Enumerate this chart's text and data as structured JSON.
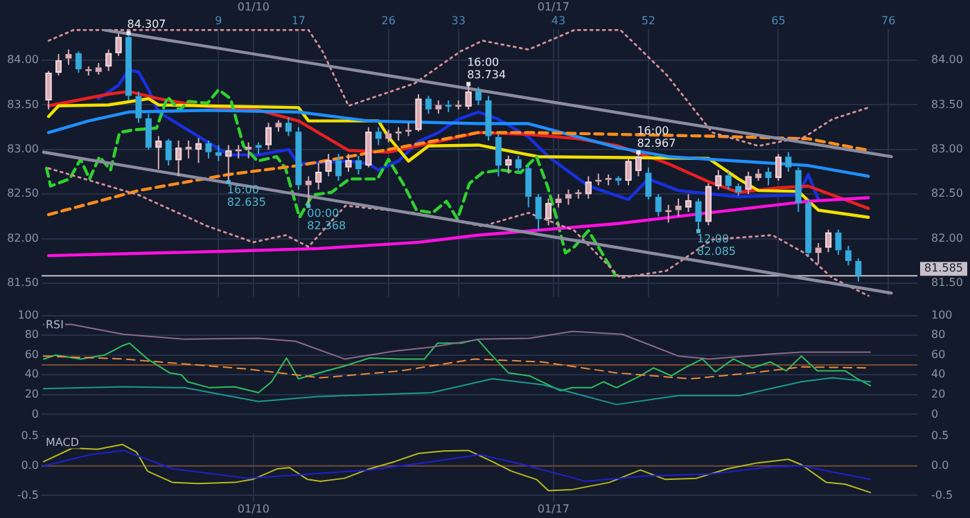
{
  "chart_data": [
    {
      "type": "candlestick",
      "x": [
        -8,
        -7,
        -6,
        -5,
        -4,
        -3,
        -2,
        -1,
        0,
        1,
        2,
        3,
        4,
        5,
        6,
        7,
        8,
        9,
        10,
        11,
        12,
        13,
        14,
        15,
        16,
        17,
        18,
        19,
        20,
        21,
        22,
        23,
        24,
        25,
        26,
        27,
        28,
        29,
        30,
        31,
        32,
        33,
        34,
        35,
        36,
        37,
        38,
        39,
        40,
        41,
        42,
        43,
        44,
        45,
        46,
        47,
        48,
        49,
        50,
        51,
        52,
        53,
        54,
        55,
        56,
        57,
        58,
        59,
        60,
        61,
        62,
        63,
        64,
        65,
        66,
        67,
        68,
        69,
        70,
        71,
        72,
        73
      ],
      "ohlc": [
        [
          83.55,
          83.88,
          83.45,
          83.86
        ],
        [
          83.86,
          84.07,
          83.83,
          84.0
        ],
        [
          84.02,
          84.12,
          83.95,
          84.07
        ],
        [
          84.08,
          84.1,
          83.86,
          83.9
        ],
        [
          83.88,
          83.93,
          83.83,
          83.9
        ],
        [
          83.87,
          83.97,
          83.84,
          83.92
        ],
        [
          83.93,
          84.12,
          83.88,
          84.08
        ],
        [
          84.08,
          84.3,
          84.05,
          84.26
        ],
        [
          84.26,
          84.307,
          83.55,
          83.6
        ],
        [
          83.6,
          83.65,
          83.3,
          83.35
        ],
        [
          83.35,
          83.4,
          83.0,
          83.02
        ],
        [
          83.02,
          83.15,
          82.78,
          83.1
        ],
        [
          83.1,
          83.12,
          82.82,
          82.88
        ],
        [
          82.88,
          83.1,
          82.7,
          83.02
        ],
        [
          83.0,
          83.1,
          82.9,
          83.03
        ],
        [
          83.0,
          83.13,
          82.85,
          83.07
        ],
        [
          83.07,
          83.1,
          82.9,
          82.97
        ],
        [
          82.97,
          83.05,
          82.87,
          82.93
        ],
        [
          82.92,
          83.05,
          82.635,
          82.99
        ],
        [
          82.98,
          83.05,
          82.9,
          83.0
        ],
        [
          83.0,
          83.08,
          82.9,
          83.03
        ],
        [
          83.05,
          83.08,
          82.95,
          83.02
        ],
        [
          83.05,
          83.3,
          83.0,
          83.25
        ],
        [
          83.25,
          83.33,
          83.2,
          83.3
        ],
        [
          83.3,
          83.36,
          83.15,
          83.2
        ],
        [
          83.2,
          83.25,
          82.55,
          82.6
        ],
        [
          82.6,
          82.7,
          82.368,
          82.65
        ],
        [
          82.63,
          82.85,
          82.55,
          82.75
        ],
        [
          82.75,
          82.95,
          82.7,
          82.88
        ],
        [
          82.88,
          82.95,
          82.65,
          82.7
        ],
        [
          82.8,
          82.95,
          82.75,
          82.88
        ],
        [
          82.88,
          82.93,
          82.72,
          82.78
        ],
        [
          82.82,
          83.25,
          82.8,
          83.2
        ],
        [
          83.2,
          83.25,
          83.05,
          83.12
        ],
        [
          83.12,
          83.22,
          83.08,
          83.18
        ],
        [
          83.18,
          83.25,
          83.1,
          83.2
        ],
        [
          83.2,
          83.3,
          83.15,
          83.22
        ],
        [
          83.22,
          83.62,
          83.2,
          83.57
        ],
        [
          83.57,
          83.6,
          83.4,
          83.45
        ],
        [
          83.45,
          83.55,
          83.4,
          83.5
        ],
        [
          83.5,
          83.55,
          83.42,
          83.48
        ],
        [
          83.48,
          83.55,
          83.45,
          83.5
        ],
        [
          83.48,
          83.734,
          83.45,
          83.65
        ],
        [
          83.65,
          83.7,
          83.5,
          83.55
        ],
        [
          83.55,
          83.6,
          83.1,
          83.15
        ],
        [
          83.14,
          83.17,
          82.7,
          82.82
        ],
        [
          82.82,
          82.93,
          82.73,
          82.89
        ],
        [
          82.89,
          82.93,
          82.75,
          82.79
        ],
        [
          82.79,
          82.82,
          82.35,
          82.47
        ],
        [
          82.47,
          82.5,
          82.09,
          82.22
        ],
        [
          82.22,
          82.45,
          82.15,
          82.4
        ],
        [
          82.4,
          82.5,
          82.35,
          82.45
        ],
        [
          82.45,
          82.55,
          82.38,
          82.5
        ],
        [
          82.5,
          82.55,
          82.45,
          82.52
        ],
        [
          82.5,
          82.7,
          82.45,
          82.64
        ],
        [
          82.64,
          82.73,
          82.6,
          82.66
        ],
        [
          82.66,
          82.72,
          82.6,
          82.68
        ],
        [
          82.68,
          82.7,
          82.6,
          82.65
        ],
        [
          82.65,
          82.9,
          82.6,
          82.87
        ],
        [
          82.76,
          82.967,
          82.7,
          82.92
        ],
        [
          82.74,
          82.8,
          82.44,
          82.47
        ],
        [
          82.47,
          82.5,
          82.25,
          82.3
        ],
        [
          82.3,
          82.38,
          82.18,
          82.32
        ],
        [
          82.32,
          82.45,
          82.25,
          82.37
        ],
        [
          82.35,
          82.5,
          82.3,
          82.43
        ],
        [
          82.42,
          82.45,
          82.085,
          82.19
        ],
        [
          82.19,
          82.62,
          82.15,
          82.59
        ],
        [
          82.59,
          82.77,
          82.55,
          82.71
        ],
        [
          82.71,
          82.75,
          82.55,
          82.59
        ],
        [
          82.59,
          82.62,
          82.48,
          82.52
        ],
        [
          82.55,
          82.75,
          82.5,
          82.7
        ],
        [
          82.68,
          82.78,
          82.65,
          82.73
        ],
        [
          82.75,
          82.8,
          82.6,
          82.68
        ],
        [
          82.68,
          82.95,
          82.65,
          82.92
        ],
        [
          82.92,
          82.97,
          82.75,
          82.8
        ],
        [
          82.77,
          82.8,
          82.3,
          82.4
        ],
        [
          82.4,
          82.45,
          81.8,
          81.84
        ],
        [
          81.84,
          81.95,
          81.72,
          81.9
        ],
        [
          81.9,
          82.1,
          81.85,
          82.07
        ],
        [
          82.07,
          82.1,
          81.82,
          81.87
        ],
        [
          81.87,
          81.92,
          81.7,
          81.75
        ],
        [
          81.75,
          81.78,
          81.52,
          81.585
        ]
      ],
      "colors": [
        "#d8aab4",
        "#d8aab4",
        "#d8aab4",
        "#35a8dc",
        "#d8aab4",
        "#d8aab4",
        "#d8aab4",
        "#d8aab4",
        "#35a8dc",
        "#35a8dc",
        "#35a8dc",
        "#d8aab4",
        "#35a8dc",
        "#d8aab4",
        "#d8aab4",
        "#d8aab4",
        "#35a8dc",
        "#35a8dc",
        "#d8aab4",
        "#d8aab4",
        "#d8aab4",
        "#35a8dc",
        "#d8aab4",
        "#d8aab4",
        "#35a8dc",
        "#35a8dc",
        "#d8aab4",
        "#d8aab4",
        "#d8aab4",
        "#35a8dc",
        "#d8aab4",
        "#35a8dc",
        "#d8aab4",
        "#35a8dc",
        "#d8aab4",
        "#d8aab4",
        "#d8aab4",
        "#d8aab4",
        "#35a8dc",
        "#d8aab4",
        "#35a8dc",
        "#d8aab4",
        "#d8aab4",
        "#35a8dc",
        "#35a8dc",
        "#35a8dc",
        "#d8aab4",
        "#35a8dc",
        "#35a8dc",
        "#35a8dc",
        "#d8aab4",
        "#d8aab4",
        "#d8aab4",
        "#d8aab4",
        "#d8aab4",
        "#d8aab4",
        "#d8aab4",
        "#35a8dc",
        "#d8aab4",
        "#d8aab4",
        "#35a8dc",
        "#35a8dc",
        "#d8aab4",
        "#d8aab4",
        "#d8aab4",
        "#35a8dc",
        "#d8aab4",
        "#d8aab4",
        "#35a8dc",
        "#35a8dc",
        "#d8aab4",
        "#d8aab4",
        "#35a8dc",
        "#d8aab4",
        "#35a8dc",
        "#35a8dc",
        "#35a8dc",
        "#d8aab4",
        "#d8aab4",
        "#35a8dc",
        "#35a8dc",
        "#35a8dc"
      ],
      "series": [
        {
          "type": "line",
          "color": "#8c8ca0",
          "x": [
            -2.4,
            76.3
          ],
          "values": [
            84.34,
            82.92
          ]
        },
        {
          "type": "line",
          "color": "#8c8ca0",
          "x": [
            -8.5,
            76.3
          ],
          "values": [
            82.97,
            81.39
          ]
        },
        {
          "type": "line",
          "color": "#d89098",
          "line_style": "dotted",
          "x": [
            -8,
            -5.5,
            18,
            19.4,
            22,
            28.6,
            33.2,
            35.4,
            40,
            44.6,
            49.2,
            53.8,
            58.4,
            63,
            67.6,
            70.4,
            74
          ],
          "values": [
            84.22,
            84.34,
            84.34,
            84.1,
            83.49,
            83.74,
            84.1,
            84.22,
            84.12,
            84.34,
            84.34,
            83.84,
            83.19,
            83.04,
            83.14,
            83.34,
            83.47
          ]
        },
        {
          "type": "line",
          "color": "#d89098",
          "line_style": "dotted",
          "x": [
            -8,
            1,
            7.9,
            12.5,
            15.7,
            18,
            21.7,
            28.6,
            35.4,
            40,
            44.6,
            49.2,
            53.8,
            58.4,
            64.4,
            67.6,
            70.4,
            74
          ],
          "values": [
            82.79,
            82.49,
            82.14,
            81.96,
            82.04,
            81.91,
            82.37,
            82.29,
            82.14,
            82.29,
            82.09,
            81.56,
            81.64,
            81.99,
            82.04,
            81.84,
            81.56,
            81.36
          ]
        },
        {
          "type": "line",
          "color": "#ff10e0",
          "x": [
            -8,
            10,
            19,
            29,
            35,
            49,
            58,
            68,
            74
          ],
          "values": [
            81.81,
            81.86,
            81.89,
            81.96,
            82.04,
            82.17,
            82.29,
            82.42,
            82.46
          ]
        },
        {
          "type": "line",
          "color": "#ff8c1a",
          "line_style": "dashed",
          "x": [
            -8,
            1,
            10,
            17,
            26,
            35,
            40,
            49,
            58,
            68,
            74
          ],
          "values": [
            82.27,
            82.54,
            82.72,
            82.82,
            83.0,
            83.19,
            83.19,
            83.17,
            83.15,
            83.12,
            82.99
          ]
        },
        {
          "type": "line",
          "color": "#1e90ff",
          "x": [
            -8,
            -4,
            0,
            8,
            17,
            24,
            35,
            40,
            49,
            54,
            68,
            74
          ],
          "values": [
            83.19,
            83.32,
            83.42,
            83.44,
            83.42,
            83.32,
            83.29,
            83.29,
            83.02,
            82.92,
            82.82,
            82.7
          ]
        },
        {
          "type": "line",
          "color": "#30d030",
          "line_style": "dashed",
          "x": [
            -8.2,
            -7.8,
            -5.9,
            -4.8,
            -3.9,
            -2.9,
            -1.8,
            -0.9,
            0.5,
            2.8,
            3.9,
            5.1,
            6,
            7.9,
            9,
            10.2,
            11.5,
            12.9,
            14.8,
            15.7,
            17.1,
            18.4,
            20.3,
            22.1,
            24.9,
            26,
            27.6,
            28.8,
            30.4,
            31.8,
            32.9,
            34.1,
            35.4,
            37.3,
            39.2,
            40.8,
            41.9,
            42.8,
            43.7,
            44.6,
            46,
            48.7
          ],
          "values": [
            82.79,
            82.59,
            82.67,
            82.89,
            82.67,
            82.92,
            82.77,
            83.19,
            83.22,
            83.24,
            83.59,
            83.44,
            83.54,
            83.52,
            83.67,
            83.57,
            83.04,
            82.87,
            82.92,
            82.79,
            82.24,
            82.49,
            82.52,
            82.67,
            82.67,
            82.89,
            82.59,
            82.32,
            82.29,
            82.42,
            82.22,
            82.62,
            82.74,
            82.77,
            82.74,
            82.92,
            82.59,
            82.24,
            81.84,
            81.91,
            82.09,
            81.59
          ]
        },
        {
          "type": "line",
          "color": "#f0e000",
          "x": [
            -8,
            -7,
            -2,
            2,
            3,
            17,
            18,
            25,
            26,
            28,
            30,
            35,
            41,
            58,
            61,
            63,
            67,
            69,
            74
          ],
          "values": [
            83.37,
            83.49,
            83.5,
            83.57,
            83.5,
            83.47,
            83.32,
            83.32,
            83.14,
            82.87,
            83.04,
            83.05,
            82.92,
            82.9,
            82.67,
            82.54,
            82.53,
            82.32,
            82.24
          ]
        },
        {
          "type": "line",
          "color": "#e82020",
          "x": [
            -8,
            -2,
            0,
            3,
            7,
            13,
            17,
            22,
            26,
            31,
            35,
            40,
            45,
            49,
            54,
            58,
            61,
            65,
            68,
            74
          ],
          "values": [
            83.49,
            83.62,
            83.65,
            83.57,
            83.49,
            83.44,
            83.32,
            82.99,
            82.97,
            83.09,
            83.19,
            83.17,
            83.12,
            83.04,
            82.84,
            82.64,
            82.52,
            82.57,
            82.59,
            82.34
          ]
        },
        {
          "type": "line",
          "color": "#1830e0",
          "x": [
            -3,
            -1,
            0,
            1,
            2,
            3,
            10,
            13,
            16,
            17,
            22,
            24,
            25,
            27,
            29,
            31,
            33,
            35,
            37,
            40,
            42,
            46,
            50,
            52,
            55,
            61,
            67,
            68,
            69
          ],
          "values": [
            83.57,
            83.72,
            83.89,
            83.87,
            83.67,
            83.42,
            82.94,
            82.94,
            83.0,
            82.84,
            82.87,
            82.84,
            82.77,
            82.87,
            83.09,
            83.19,
            83.34,
            83.42,
            83.34,
            83.14,
            82.92,
            82.59,
            82.44,
            82.67,
            82.54,
            82.47,
            82.49,
            82.72,
            82.44
          ]
        }
      ],
      "xlim": [
        -8.7,
        78.9
      ],
      "xticks": [
        9,
        17,
        26,
        33,
        43,
        52,
        65,
        76
      ],
      "x2lim": [
        "--01-05T01:16",
        "--01-25T11:50"
      ],
      "x2ticks": [
        {
          "value": "--01-10",
          "label": "01/10"
        },
        {
          "value": "--01-17",
          "label": "01/17"
        }
      ],
      "ylim": [
        81.35,
        84.35
      ],
      "yticks": [
        {
          "value": 81.5,
          "label": "81.50"
        },
        {
          "value": 82,
          "label": "82.00"
        },
        {
          "value": 82.5,
          "label": "82.50"
        },
        {
          "value": 83,
          "label": "83.00"
        },
        {
          "value": 83.5,
          "label": "83.50"
        },
        {
          "value": 84,
          "label": "84.00"
        }
      ],
      "y2lim": [
        81.35,
        84.35
      ],
      "y2ticks": [
        {
          "value": 81.5,
          "label": "81.50"
        },
        {
          "value": 82,
          "label": "82.00"
        },
        {
          "value": 82.5,
          "label": "82.50"
        },
        {
          "value": 83,
          "label": "83.00"
        },
        {
          "value": 83.5,
          "label": "83.50"
        },
        {
          "value": 84,
          "label": "84.00"
        }
      ],
      "ref_lines": [
        {
          "axis": "y",
          "value": 81.585,
          "label": "81.585",
          "color": "#c8c0c8"
        }
      ],
      "annotations": [
        {
          "text": "84.307",
          "x": 0,
          "y": 84.307
        },
        {
          "text": "16:00 82.635",
          "x": 10,
          "y": 82.635
        },
        {
          "text": "00:00 82.368",
          "x": 18,
          "y": 82.368
        },
        {
          "text": "16:00 83.734",
          "x": 34,
          "y": 83.734
        },
        {
          "text": "16:00 82.967",
          "x": 51,
          "y": 82.967
        },
        {
          "text": "12:00 82.085",
          "x": 57,
          "y": 82.085
        }
      ],
      "grid": true
    },
    {
      "type": "line",
      "title": "RSI",
      "series": [
        {
          "color": "#8a6a8a",
          "x": [
            -8.5,
            -5.7,
            -0.5,
            5.6,
            13,
            16.7,
            21.6,
            26.6,
            30.3,
            35.1,
            40.1,
            44.4,
            49.4,
            55,
            58.1,
            64.2,
            67.3,
            74.2
          ],
          "values": [
            91,
            91,
            81,
            76,
            77,
            74,
            56,
            64,
            68,
            76,
            77,
            84,
            81,
            59,
            56,
            61,
            63,
            63
          ]
        },
        {
          "color": "#1a9a8a",
          "x": [
            -8.5,
            -0.5,
            5.6,
            13,
            18.8,
            30.3,
            36.4,
            41.4,
            48.8,
            55,
            61.1,
            67.3,
            70.4,
            74.2
          ],
          "values": [
            26,
            28,
            27,
            13,
            18,
            22,
            36,
            30,
            10,
            19,
            19,
            33,
            37,
            33
          ]
        },
        {
          "color": "#e88a3a",
          "line_style": "dashed",
          "x": [
            -8.5,
            -0.5,
            5.6,
            11.8,
            19.2,
            27.2,
            34.6,
            41.4,
            48.8,
            56.2,
            62.4,
            67.3,
            74.2
          ],
          "values": [
            59,
            56,
            51,
            46,
            37,
            44,
            56,
            53,
            42,
            36,
            42,
            48,
            47
          ]
        },
        {
          "color": "#2fbf5f",
          "x": [
            -8.5,
            -7.3,
            -4.8,
            -2.4,
            -0.5,
            0.1,
            1.9,
            4.1,
            5.3,
            5.9,
            8.1,
            10.6,
            13,
            14.3,
            15.8,
            17,
            19.8,
            21.6,
            24.1,
            27.2,
            29.6,
            30.9,
            33.3,
            34.9,
            36.4,
            38,
            40.1,
            43.2,
            44.4,
            46.3,
            47.5,
            48.8,
            51.2,
            52.5,
            54.3,
            55.6,
            57.4,
            58.7,
            60.5,
            62.4,
            64.2,
            65.8,
            67.3,
            68.9,
            71.7,
            72.9,
            74.2
          ],
          "values": [
            56,
            60,
            56,
            60,
            70,
            72,
            56,
            42,
            40,
            33,
            27,
            28,
            22,
            33,
            57,
            36,
            44,
            49,
            57,
            56,
            56,
            72,
            72,
            76,
            59,
            42,
            39,
            24,
            27,
            27,
            33,
            27,
            39,
            47,
            39,
            47,
            56,
            43,
            56,
            47,
            53,
            44,
            59,
            44,
            44,
            36,
            29
          ]
        }
      ],
      "xlim": [
        -8.7,
        78.9
      ],
      "tick_labels": "y",
      "ylim": [
        0,
        100
      ],
      "yticks": [
        0,
        20,
        40,
        60,
        80,
        100
      ],
      "y2lim": [
        0,
        100
      ],
      "y2ticks": [
        0,
        20,
        40,
        60,
        80,
        100
      ],
      "ref_lines": [
        {
          "axis": "y",
          "value": 50,
          "color": "#7a4a30"
        }
      ],
      "grid": true
    },
    {
      "type": "line",
      "title": "MACD",
      "series": [
        {
          "color": "#2020d0",
          "x": [
            -8.5,
            -3.8,
            -0.5,
            4.4,
            11.8,
            17.9,
            24.1,
            30.3,
            35.1,
            39.5,
            45.7,
            51.8,
            58,
            64.2,
            67.3,
            74.2
          ],
          "values": [
            0,
            0.19,
            0.26,
            -0.05,
            -0.21,
            -0.14,
            -0.07,
            0.07,
            0.19,
            0.02,
            -0.26,
            -0.17,
            -0.14,
            -0.02,
            0,
            -0.23
          ]
        },
        {
          "color": "#b8b820",
          "x": [
            -8.5,
            -5.6,
            -3.1,
            -0.6,
            0.8,
            1.9,
            4.4,
            6.9,
            10.6,
            12.4,
            14.9,
            16.1,
            17.9,
            19.2,
            21.6,
            24.1,
            26.6,
            29,
            31.5,
            34,
            36.4,
            38.3,
            40.8,
            42,
            44.4,
            48.1,
            51.2,
            53.7,
            56.8,
            59.9,
            62.9,
            66,
            67.3,
            69.8,
            71.7,
            74.2
          ],
          "values": [
            0.07,
            0.3,
            0.28,
            0.36,
            0.23,
            -0.09,
            -0.28,
            -0.3,
            -0.28,
            -0.23,
            -0.05,
            -0.03,
            -0.23,
            -0.26,
            -0.21,
            -0.05,
            0.07,
            0.21,
            0.25,
            0.26,
            0.07,
            -0.09,
            -0.23,
            -0.42,
            -0.4,
            -0.28,
            -0.07,
            -0.23,
            -0.21,
            -0.05,
            0.05,
            0.11,
            0.02,
            -0.28,
            -0.31,
            -0.45
          ]
        }
      ],
      "xlim": [
        -8.7,
        78.9
      ],
      "x2lim": [
        "--01-05T01:16",
        "--01-25T11:50"
      ],
      "x2ticks": [
        {
          "value": "--01-10",
          "label": "01/10"
        },
        {
          "value": "--01-17",
          "label": "01/17"
        }
      ],
      "ylim": [
        -0.6,
        0.55
      ],
      "yticks": [
        {
          "value": -0.5,
          "label": "-0.5"
        },
        {
          "value": 0,
          "label": "0.0"
        },
        {
          "value": 0.5,
          "label": "0.5"
        }
      ],
      "y2lim": [
        -0.6,
        0.55
      ],
      "y2ticks": [
        {
          "value": -0.5,
          "label": "-0.5"
        },
        {
          "value": 0,
          "label": "0.0"
        },
        {
          "value": 0.5,
          "label": "0.5"
        }
      ],
      "ref_lines": [
        {
          "axis": "y",
          "value": 0,
          "color": "#6a4a3a"
        }
      ],
      "grid": true
    }
  ]
}
